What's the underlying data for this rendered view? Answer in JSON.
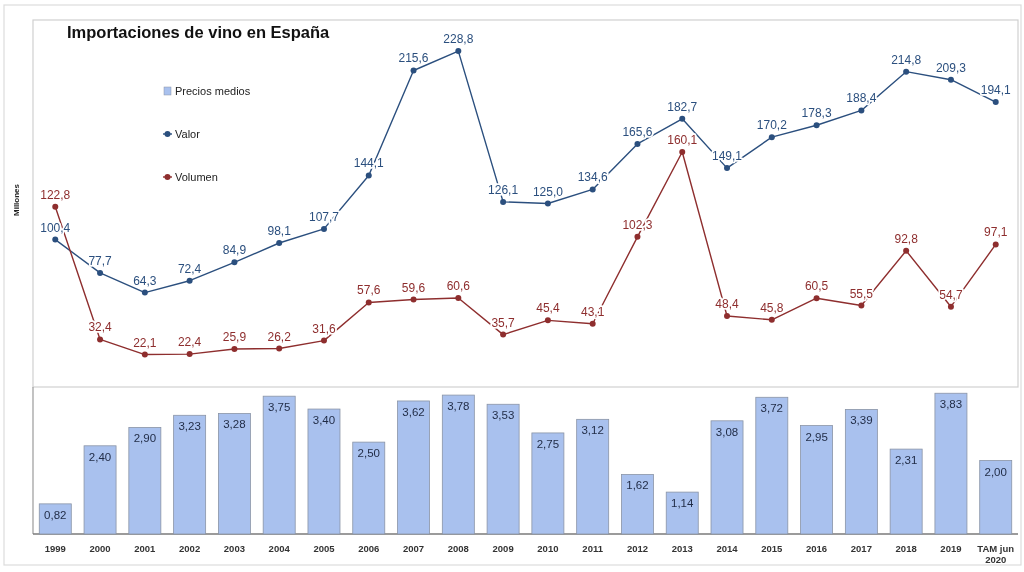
{
  "chart_data": {
    "type": "line",
    "title": "Importaciones de vino en España",
    "ylabel": "Millones",
    "categories": [
      "1999",
      "2000",
      "2001",
      "2002",
      "2003",
      "2004",
      "2005",
      "2006",
      "2007",
      "2008",
      "2009",
      "2010",
      "2011",
      "2012",
      "2013",
      "2014",
      "2015",
      "2016",
      "2017",
      "2018",
      "2019",
      "TAM jun 2020"
    ],
    "series": [
      {
        "name": "Precios medios",
        "type": "bar",
        "axis": "y2",
        "color": "#a9c1ee",
        "values": [
          0.82,
          2.4,
          2.9,
          3.23,
          3.28,
          3.75,
          3.4,
          2.5,
          3.62,
          3.78,
          3.53,
          2.75,
          3.12,
          1.62,
          1.14,
          3.08,
          3.72,
          2.95,
          3.39,
          2.31,
          3.83,
          2.0
        ],
        "value_labels": [
          "0,82",
          "2,40",
          "2,90",
          "3,23",
          "3,28",
          "3,75",
          "3,40",
          "2,50",
          "3,62",
          "3,78",
          "3,53",
          "2,75",
          "3,12",
          "1,62",
          "1,14",
          "3,08",
          "3,72",
          "2,95",
          "3,39",
          "2,31",
          "3,83",
          "2,00"
        ]
      },
      {
        "name": "Valor",
        "color": "#2b4f7e",
        "values": [
          100.4,
          77.7,
          64.3,
          72.4,
          84.9,
          98.1,
          107.7,
          144.1,
          215.6,
          228.8,
          126.1,
          125.0,
          134.6,
          165.6,
          182.7,
          149.1,
          170.2,
          178.3,
          188.4,
          214.8,
          209.3,
          194.1
        ],
        "value_labels": [
          "100,4",
          "77,7",
          "64,3",
          "72,4",
          "84,9",
          "98,1",
          "107,7",
          "144,1",
          "215,6",
          "228,8",
          "126,1",
          "125,0",
          "134,6",
          "165,6",
          "182,7",
          "149,1",
          "170,2",
          "178,3",
          "188,4",
          "214,8",
          "209,3",
          "194,1"
        ]
      },
      {
        "name": "Volumen",
        "color": "#8e2e2e",
        "values": [
          122.8,
          32.4,
          22.1,
          22.4,
          25.9,
          26.2,
          31.6,
          57.6,
          59.6,
          60.6,
          35.7,
          45.4,
          43.1,
          102.3,
          160.1,
          48.4,
          45.8,
          60.5,
          55.5,
          92.8,
          54.7,
          97.1
        ],
        "value_labels": [
          "122,8",
          "32,4",
          "22,1",
          "22,4",
          "25,9",
          "26,2",
          "31,6",
          "57,6",
          "59,6",
          "60,6",
          "35,7",
          "45,4",
          "43,1",
          "102,3",
          "160,1",
          "48,4",
          "45,8",
          "60,5",
          "55,5",
          "92,8",
          "54,7",
          "97,1"
        ]
      }
    ],
    "ylim": [
      0,
      250
    ],
    "y2lim": [
      0,
      4
    ],
    "tick_labels": "x",
    "legend": "top left",
    "marker": "circle"
  }
}
